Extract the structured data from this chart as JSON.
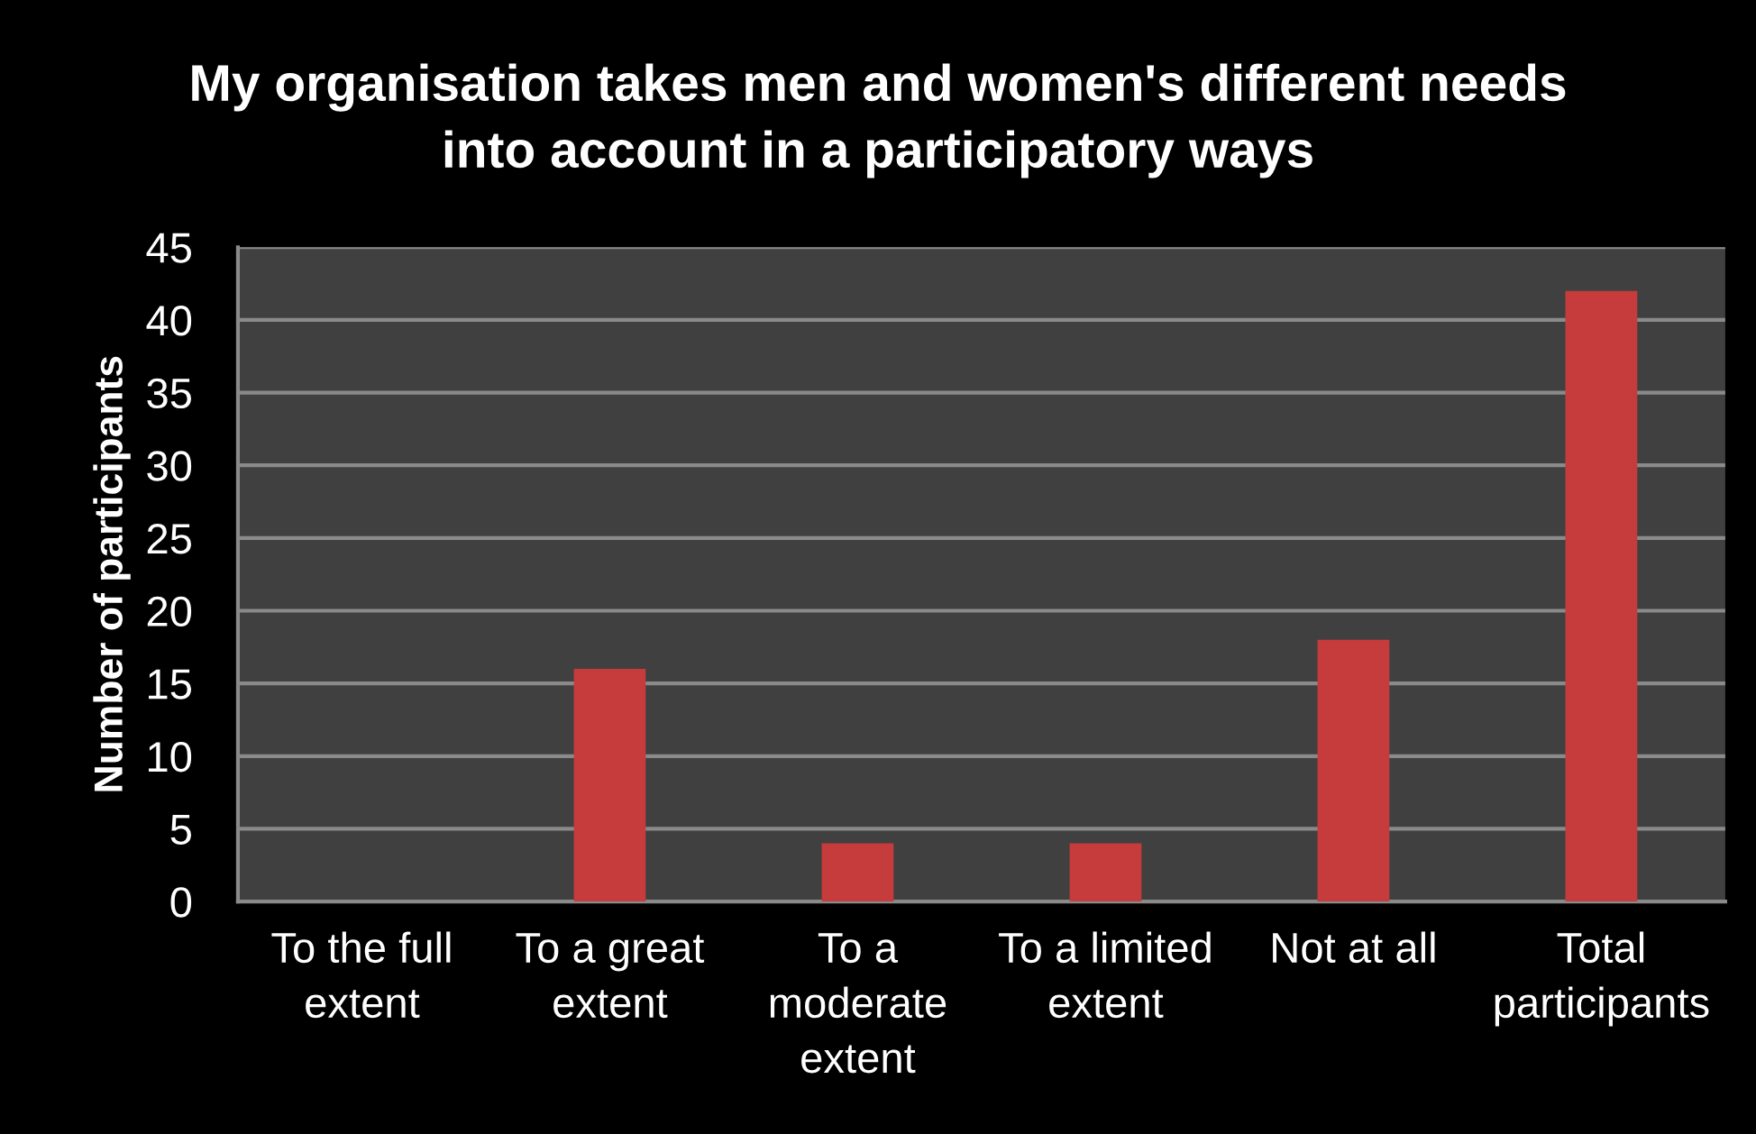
{
  "chart_data": {
    "type": "bar",
    "title": "My organisation takes men and women's different needs\ninto account in a participatory ways",
    "ylabel": "Number of participants",
    "categories": [
      "To the full\nextent",
      "To a great\nextent",
      "To a\nmoderate\nextent",
      "To a limited\nextent",
      "Not at all",
      "Total\nparticipants"
    ],
    "values": [
      0,
      16,
      4,
      4,
      18,
      42
    ],
    "color": "#c63b3c",
    "ylim": [
      0,
      45
    ],
    "yticks": [
      0,
      5,
      10,
      15,
      20,
      25,
      30,
      35,
      40,
      45
    ],
    "grid": "y"
  }
}
